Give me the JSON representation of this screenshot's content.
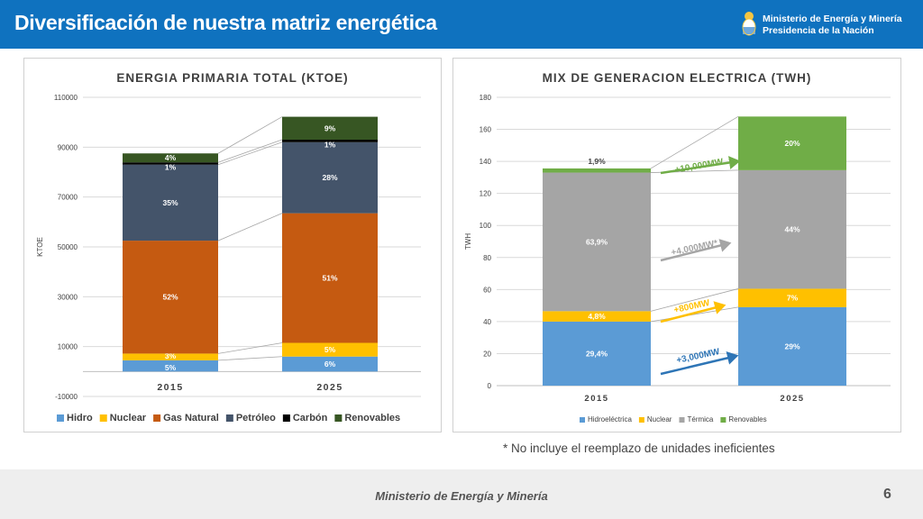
{
  "header": {
    "title": "Diversificación de nuestra matriz energética",
    "ministry_line1": "Ministerio de Energía y Minería",
    "ministry_line2": "Presidencia de la Nación",
    "logo_icon": "argentina-coat-of-arms-icon",
    "bg_color": "#0f72bf"
  },
  "footnote": "* No incluye el reemplazo de unidades ineficientes",
  "footer": {
    "text": "Ministerio de Energía y Minería",
    "page_number": "6"
  },
  "chart_data": [
    {
      "type": "bar",
      "stacked": true,
      "title": "ENERGIA PRIMARIA TOTAL (KTOE)",
      "ylabel": "KTOE",
      "ylim": [
        -10000,
        110000
      ],
      "yticks": [
        "-10000",
        "10000",
        "30000",
        "50000",
        "70000",
        "90000",
        "110000"
      ],
      "categories": [
        "2015",
        "2025"
      ],
      "legend_position": "bottom",
      "grid": true,
      "series": [
        {
          "name": "Hidro",
          "color": "#5b9bd5",
          "values": [
            4500,
            6000
          ],
          "labels": [
            "5%",
            "6%"
          ]
        },
        {
          "name": "Nuclear",
          "color": "#ffc000",
          "values": [
            2700,
            5500
          ],
          "labels": [
            "3%",
            "5%"
          ]
        },
        {
          "name": "Gas Natural",
          "color": "#c55a11",
          "values": [
            45300,
            52000
          ],
          "labels": [
            "52%",
            "51%"
          ]
        },
        {
          "name": "Petróleo",
          "color": "#44546a",
          "values": [
            30500,
            28500
          ],
          "labels": [
            "35%",
            "28%"
          ]
        },
        {
          "name": "Carbón",
          "color": "#000000",
          "values": [
            900,
            1000
          ],
          "labels": [
            "1%",
            "1%"
          ]
        },
        {
          "name": "Renovables",
          "color": "#375623",
          "values": [
            3600,
            9200
          ],
          "labels": [
            "4%",
            "9%"
          ]
        }
      ]
    },
    {
      "type": "bar",
      "stacked": true,
      "title": "MIX DE GENERACION ELECTRICA (TWH)",
      "ylabel": "TWH",
      "ylim": [
        0,
        180
      ],
      "yticks": [
        "0",
        "20",
        "40",
        "60",
        "80",
        "100",
        "120",
        "140",
        "160",
        "180"
      ],
      "categories": [
        "2015",
        "2025"
      ],
      "legend_position": "bottom",
      "grid": true,
      "series": [
        {
          "name": "Hidroeléctrica",
          "color": "#5b9bd5",
          "values": [
            40,
            49
          ],
          "labels": [
            "29,4%",
            "29%"
          ]
        },
        {
          "name": "Nuclear",
          "color": "#ffc000",
          "values": [
            6.5,
            11.5
          ],
          "labels": [
            "4,8%",
            "7%"
          ]
        },
        {
          "name": "Térmica",
          "color": "#a5a5a5",
          "values": [
            86.5,
            74
          ],
          "labels": [
            "63,9%",
            "44%"
          ]
        },
        {
          "name": "Renovables",
          "color": "#70ad47",
          "values": [
            2.6,
            33.5
          ],
          "labels": [
            "1,9%",
            "20%"
          ]
        }
      ],
      "annotations": [
        {
          "text": "+10,000MW",
          "color": "#70ad47",
          "series": "Renovables"
        },
        {
          "text": "+4,000MW*",
          "color": "#a5a5a5",
          "series": "Térmica"
        },
        {
          "text": "+800MW",
          "color": "#ffc000",
          "series": "Nuclear"
        },
        {
          "text": "+3,000MW",
          "color": "#2e75b6",
          "series": "Hidroeléctrica"
        }
      ]
    }
  ]
}
